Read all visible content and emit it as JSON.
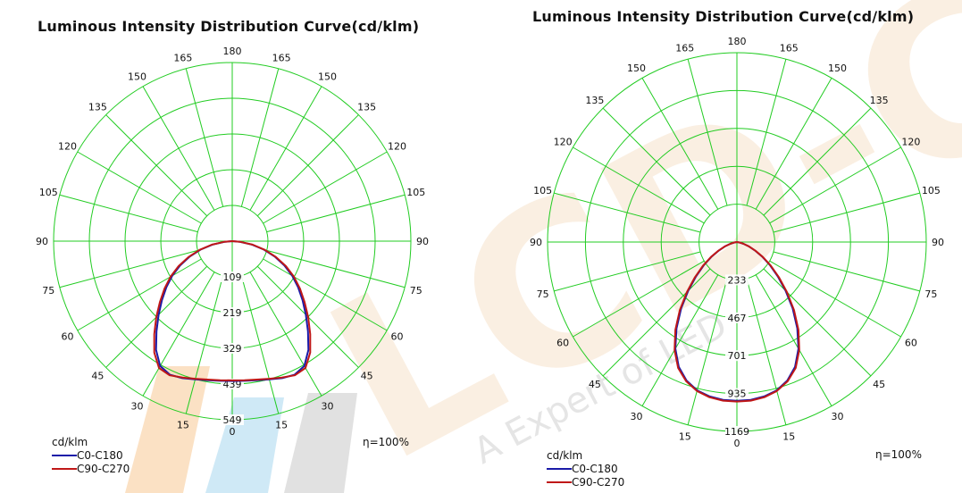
{
  "watermark": {
    "text": "LCD-CE",
    "tagline": "A Expert of LED",
    "color": "#f5dcc0"
  },
  "charts": [
    {
      "title": "Luminous Intensity Distribution Curve(cd/klm)",
      "unit_label": "cd/klm",
      "efficiency": "η=100%",
      "angle_labels": [
        "180",
        "165",
        "150",
        "135",
        "120",
        "105",
        "90",
        "75",
        "60",
        "45",
        "30",
        "15",
        "0"
      ],
      "ring_labels": [
        "109",
        "219",
        "329",
        "439",
        "549"
      ],
      "legend": [
        {
          "label": "C0-C180",
          "color": "#1a1aa8"
        },
        {
          "label": "C90-C270",
          "color": "#c01818"
        }
      ]
    },
    {
      "title": "Luminous Intensity Distribution Curve(cd/klm)",
      "unit_label": "cd/klm",
      "efficiency": "η=100%",
      "angle_labels": [
        "180",
        "165",
        "150",
        "135",
        "120",
        "105",
        "90",
        "75",
        "60",
        "45",
        "30",
        "15",
        "0"
      ],
      "ring_labels": [
        "233",
        "467",
        "701",
        "935",
        "1169"
      ],
      "legend": [
        {
          "label": "C0-C180",
          "color": "#1a1aa8"
        },
        {
          "label": "C90-C270",
          "color": "#c01818"
        }
      ]
    }
  ],
  "chart_data": [
    {
      "type": "polar-line",
      "title": "Luminous Intensity Distribution Curve(cd/klm)",
      "unit": "cd/klm",
      "rmax": 549,
      "ring_values": [
        109,
        219,
        329,
        439,
        549
      ],
      "angle_ticks_deg": [
        0,
        15,
        30,
        45,
        60,
        75,
        90,
        105,
        120,
        135,
        150,
        165,
        180
      ],
      "series": [
        {
          "name": "C0-C180",
          "color": "#1a1aa8",
          "angles_deg": [
            0,
            5,
            10,
            15,
            20,
            25,
            30,
            35,
            40,
            45,
            50,
            55,
            60,
            65,
            70,
            75,
            80,
            85,
            90
          ],
          "values": [
            430,
            431,
            434,
            440,
            448,
            453,
            443,
            408,
            362,
            320,
            282,
            247,
            213,
            177,
            139,
            101,
            62,
            24,
            0
          ]
        },
        {
          "name": "C90-C270",
          "color": "#c01818",
          "angles_deg": [
            0,
            5,
            10,
            15,
            20,
            25,
            30,
            35,
            40,
            45,
            50,
            55,
            60,
            65,
            70,
            75,
            80,
            85,
            90
          ],
          "values": [
            428,
            429,
            432,
            438,
            446,
            455,
            450,
            418,
            373,
            330,
            290,
            254,
            219,
            182,
            143,
            104,
            64,
            25,
            0
          ]
        }
      ]
    },
    {
      "type": "polar-line",
      "title": "Luminous Intensity Distribution Curve(cd/klm)",
      "unit": "cd/klm",
      "rmax": 1169,
      "ring_values": [
        233,
        467,
        701,
        935,
        1169
      ],
      "angle_ticks_deg": [
        0,
        15,
        30,
        45,
        60,
        75,
        90,
        105,
        120,
        135,
        150,
        165,
        180
      ],
      "series": [
        {
          "name": "C0-C180",
          "color": "#1a1aa8",
          "angles_deg": [
            0,
            5,
            10,
            15,
            20,
            25,
            30,
            35,
            40,
            45,
            50,
            55,
            60,
            65,
            70,
            75,
            80,
            85,
            90
          ],
          "values": [
            980,
            978,
            968,
            948,
            910,
            850,
            760,
            650,
            535,
            425,
            330,
            250,
            180,
            122,
            78,
            42,
            16,
            4,
            0
          ]
        },
        {
          "name": "C90-C270",
          "color": "#c01818",
          "angles_deg": [
            0,
            5,
            10,
            15,
            20,
            25,
            30,
            35,
            40,
            45,
            50,
            55,
            60,
            65,
            70,
            75,
            80,
            85,
            90
          ],
          "values": [
            985,
            983,
            973,
            952,
            915,
            858,
            770,
            662,
            548,
            436,
            338,
            256,
            185,
            126,
            80,
            44,
            17,
            4,
            0
          ]
        }
      ]
    }
  ]
}
